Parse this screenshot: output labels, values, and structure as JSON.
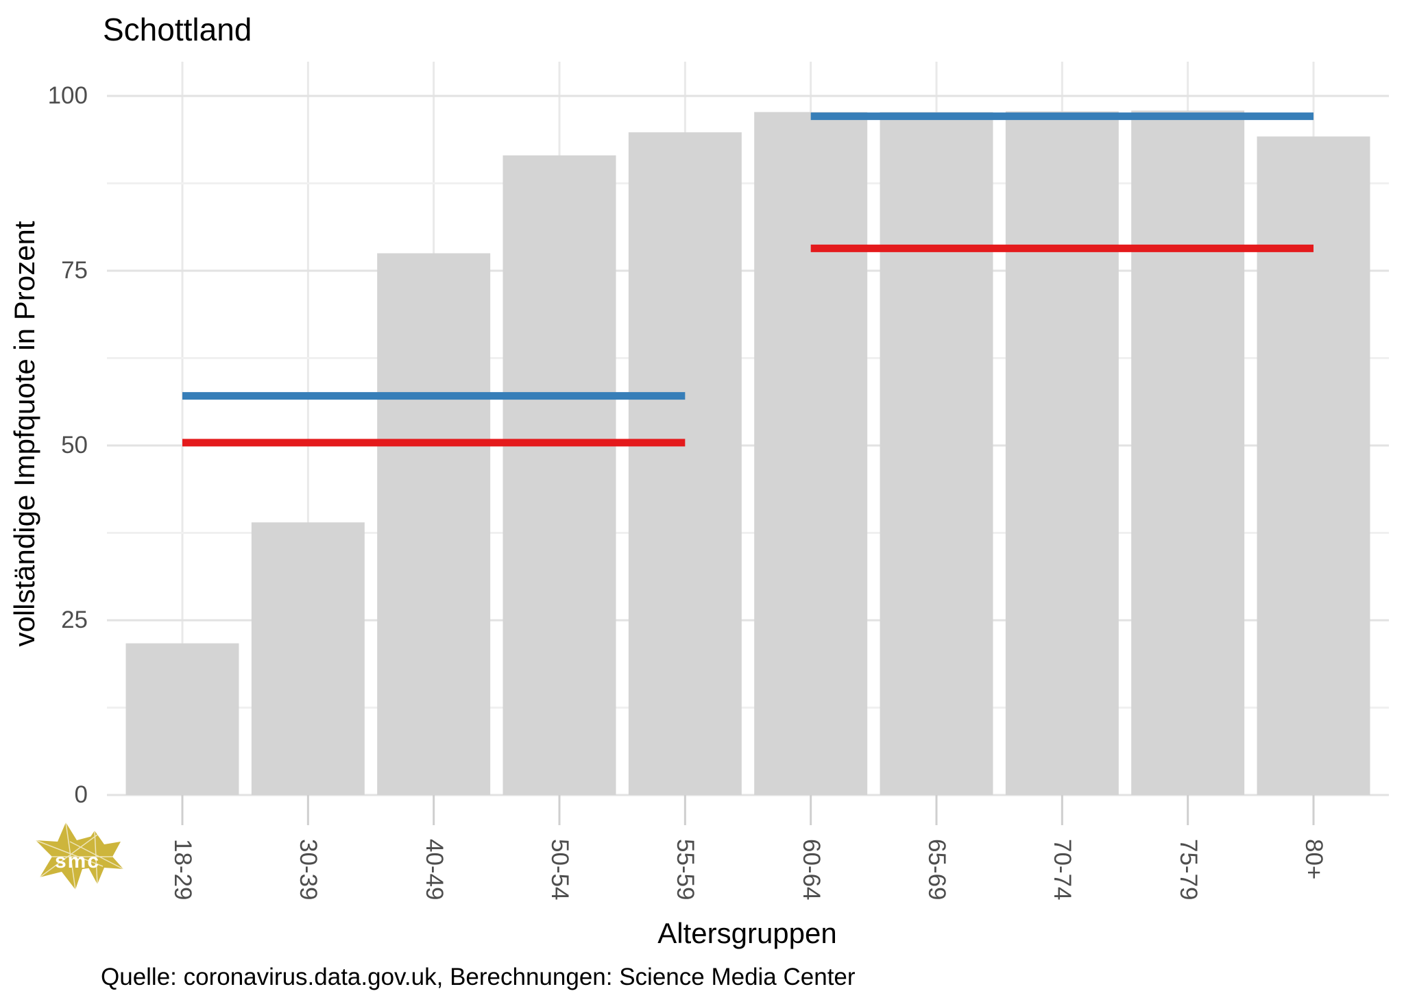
{
  "title": "Schottland",
  "chart_data": {
    "type": "bar",
    "title": "Schottland",
    "xlabel": "Altersgruppen",
    "ylabel": "vollständige Impfquote in Prozent",
    "categories": [
      "18-29",
      "30-39",
      "40-49",
      "50-54",
      "55-59",
      "60-64",
      "65-69",
      "70-74",
      "75-79",
      "80+"
    ],
    "values": [
      21.7,
      39,
      77.5,
      91.5,
      94.8,
      97.7,
      97.7,
      97.8,
      97.9,
      94.2
    ],
    "yticks": [
      0,
      25,
      50,
      75,
      100
    ],
    "ylim": [
      0,
      105
    ],
    "grid": "on",
    "legend": "none",
    "bar_color": "#d4d4d4",
    "reference_lines": [
      {
        "name": "blue-line-under-60",
        "color": "#377eb8",
        "value": 57.1,
        "from": 0,
        "to": 4
      },
      {
        "name": "red-line-under-60",
        "color": "#e41a1c",
        "value": 50.4,
        "from": 0,
        "to": 4
      },
      {
        "name": "blue-line-60-plus",
        "color": "#377eb8",
        "value": 97.1,
        "from": 5,
        "to": 9
      },
      {
        "name": "red-line-60-plus",
        "color": "#e41a1c",
        "value": 78.2,
        "from": 5,
        "to": 9
      }
    ]
  },
  "source": {
    "text": "Quelle: coronavirus.data.gov.uk, Berechnungen: Science Media Center"
  },
  "logo": {
    "text": "smc",
    "color": "#cdb53c"
  }
}
